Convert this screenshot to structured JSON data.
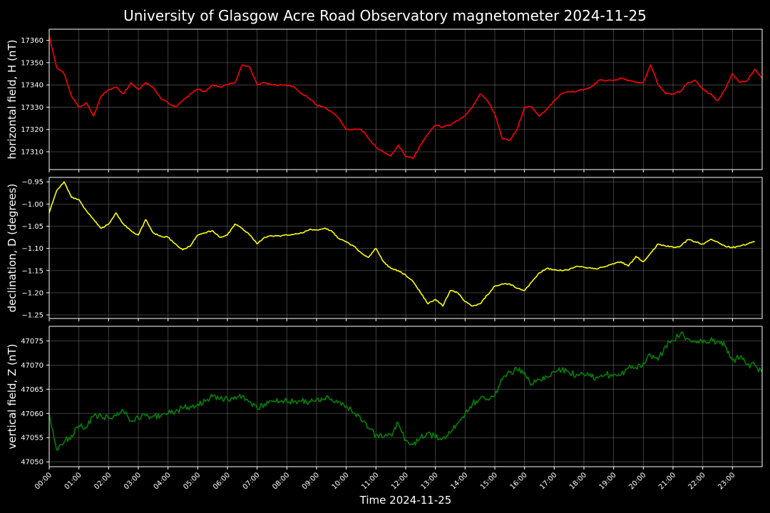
{
  "chart_data": {
    "type": "line",
    "title": "University of Glasgow Acre Road Observatory magnetometer 2024-11-25",
    "xlabel": "Time 2024-11-25",
    "x_ticks": [
      "00:00",
      "01:00",
      "02:00",
      "03:00",
      "04:00",
      "05:00",
      "06:00",
      "07:00",
      "08:00",
      "09:00",
      "10:00",
      "11:00",
      "12:00",
      "13:00",
      "14:00",
      "15:00",
      "16:00",
      "17:00",
      "18:00",
      "19:00",
      "20:00",
      "21:00",
      "22:00",
      "23:00"
    ],
    "xlim_hours": [
      0,
      24
    ],
    "grid": true,
    "background_color": "#000000",
    "panels": [
      {
        "ylabel": "horizontal field, H (nT)",
        "color": "#ff0000",
        "ylim": [
          17302,
          17365
        ],
        "y_ticks": [
          "17310",
          "17320",
          "17330",
          "17340",
          "17350",
          "17360"
        ],
        "y_tick_values": [
          17310,
          17320,
          17330,
          17340,
          17350,
          17360
        ],
        "points": [
          [
            0,
            17362
          ],
          [
            0.25,
            17348
          ],
          [
            0.5,
            17345
          ],
          [
            0.75,
            17335
          ],
          [
            1,
            17330
          ],
          [
            1.25,
            17332
          ],
          [
            1.5,
            17326
          ],
          [
            1.75,
            17335
          ],
          [
            2,
            17338
          ],
          [
            2.25,
            17339
          ],
          [
            2.5,
            17336
          ],
          [
            2.75,
            17341
          ],
          [
            3,
            17338
          ],
          [
            3.25,
            17341
          ],
          [
            3.5,
            17339
          ],
          [
            3.75,
            17334
          ],
          [
            4,
            17332
          ],
          [
            4.25,
            17330
          ],
          [
            4.5,
            17333
          ],
          [
            4.75,
            17336
          ],
          [
            5,
            17338
          ],
          [
            5.25,
            17337
          ],
          [
            5.5,
            17340
          ],
          [
            5.75,
            17339
          ],
          [
            6,
            17340
          ],
          [
            6.25,
            17341
          ],
          [
            6.5,
            17349
          ],
          [
            6.75,
            17348
          ],
          [
            7,
            17340
          ],
          [
            7.25,
            17341
          ],
          [
            7.5,
            17340
          ],
          [
            7.75,
            17340
          ],
          [
            8,
            17340
          ],
          [
            8.25,
            17339
          ],
          [
            8.5,
            17336
          ],
          [
            8.75,
            17334
          ],
          [
            9,
            17331
          ],
          [
            9.25,
            17330
          ],
          [
            9.5,
            17328
          ],
          [
            9.75,
            17325
          ],
          [
            10,
            17320
          ],
          [
            10.25,
            17320
          ],
          [
            10.5,
            17320
          ],
          [
            10.75,
            17316
          ],
          [
            11,
            17312
          ],
          [
            11.25,
            17310
          ],
          [
            11.5,
            17308
          ],
          [
            11.75,
            17313
          ],
          [
            12,
            17308
          ],
          [
            12.25,
            17307
          ],
          [
            12.5,
            17313
          ],
          [
            12.75,
            17318
          ],
          [
            13,
            17322
          ],
          [
            13.25,
            17321
          ],
          [
            13.5,
            17322
          ],
          [
            13.75,
            17324
          ],
          [
            14,
            17326
          ],
          [
            14.25,
            17330
          ],
          [
            14.5,
            17336
          ],
          [
            14.75,
            17333
          ],
          [
            15,
            17327
          ],
          [
            15.25,
            17316
          ],
          [
            15.5,
            17315
          ],
          [
            15.75,
            17320
          ],
          [
            16,
            17330
          ],
          [
            16.25,
            17330
          ],
          [
            16.5,
            17326
          ],
          [
            16.75,
            17329
          ],
          [
            17,
            17333
          ],
          [
            17.25,
            17336
          ],
          [
            17.5,
            17337
          ],
          [
            17.75,
            17337
          ],
          [
            18,
            17338
          ],
          [
            18.25,
            17339
          ],
          [
            18.5,
            17342
          ],
          [
            18.75,
            17342
          ],
          [
            19,
            17342
          ],
          [
            19.25,
            17343
          ],
          [
            19.5,
            17342
          ],
          [
            19.75,
            17341
          ],
          [
            20,
            17341
          ],
          [
            20.25,
            17349
          ],
          [
            20.5,
            17340
          ],
          [
            20.75,
            17336
          ],
          [
            21,
            17336
          ],
          [
            21.25,
            17337
          ],
          [
            21.5,
            17341
          ],
          [
            21.75,
            17342
          ],
          [
            22,
            17338
          ],
          [
            22.25,
            17336
          ],
          [
            22.5,
            17333
          ],
          [
            22.75,
            17338
          ],
          [
            23,
            17345
          ],
          [
            23.25,
            17341
          ],
          [
            23.5,
            17342
          ],
          [
            23.75,
            17347
          ],
          [
            24,
            17343
          ]
        ]
      },
      {
        "ylabel": "declination, D (degrees)",
        "color": "#ffff00",
        "ylim": [
          -1.258,
          -0.94
        ],
        "y_ticks": [
          "−0.95",
          "−1.00",
          "−1.05",
          "−1.10",
          "−1.15",
          "−1.20",
          "−1.25"
        ],
        "y_tick_values": [
          -0.95,
          -1.0,
          -1.05,
          -1.1,
          -1.15,
          -1.2,
          -1.25
        ],
        "points": [
          [
            0,
            -1.02
          ],
          [
            0.25,
            -0.97
          ],
          [
            0.5,
            -0.95
          ],
          [
            0.75,
            -0.985
          ],
          [
            1,
            -0.99
          ],
          [
            1.25,
            -1.015
          ],
          [
            1.5,
            -1.035
          ],
          [
            1.75,
            -1.055
          ],
          [
            2,
            -1.045
          ],
          [
            2.25,
            -1.02
          ],
          [
            2.5,
            -1.045
          ],
          [
            2.75,
            -1.06
          ],
          [
            3,
            -1.07
          ],
          [
            3.25,
            -1.035
          ],
          [
            3.5,
            -1.065
          ],
          [
            3.75,
            -1.072
          ],
          [
            4,
            -1.075
          ],
          [
            4.25,
            -1.09
          ],
          [
            4.5,
            -1.103
          ],
          [
            4.75,
            -1.095
          ],
          [
            5,
            -1.07
          ],
          [
            5.25,
            -1.065
          ],
          [
            5.5,
            -1.06
          ],
          [
            5.75,
            -1.075
          ],
          [
            6,
            -1.07
          ],
          [
            6.25,
            -1.045
          ],
          [
            6.5,
            -1.055
          ],
          [
            6.75,
            -1.07
          ],
          [
            7,
            -1.09
          ],
          [
            7.25,
            -1.075
          ],
          [
            7.5,
            -1.072
          ],
          [
            7.75,
            -1.072
          ],
          [
            8,
            -1.07
          ],
          [
            8.25,
            -1.068
          ],
          [
            8.5,
            -1.065
          ],
          [
            8.75,
            -1.058
          ],
          [
            9,
            -1.058
          ],
          [
            9.25,
            -1.055
          ],
          [
            9.5,
            -1.06
          ],
          [
            9.75,
            -1.078
          ],
          [
            10,
            -1.085
          ],
          [
            10.25,
            -1.095
          ],
          [
            10.5,
            -1.11
          ],
          [
            10.75,
            -1.12
          ],
          [
            11,
            -1.1
          ],
          [
            11.25,
            -1.13
          ],
          [
            11.5,
            -1.145
          ],
          [
            11.75,
            -1.15
          ],
          [
            12,
            -1.16
          ],
          [
            12.25,
            -1.175
          ],
          [
            12.5,
            -1.2
          ],
          [
            12.75,
            -1.225
          ],
          [
            13,
            -1.215
          ],
          [
            13.25,
            -1.23
          ],
          [
            13.5,
            -1.195
          ],
          [
            13.75,
            -1.2
          ],
          [
            14,
            -1.22
          ],
          [
            14.25,
            -1.23
          ],
          [
            14.5,
            -1.225
          ],
          [
            14.75,
            -1.205
          ],
          [
            15,
            -1.185
          ],
          [
            15.25,
            -1.18
          ],
          [
            15.5,
            -1.18
          ],
          [
            15.75,
            -1.19
          ],
          [
            16,
            -1.195
          ],
          [
            16.25,
            -1.175
          ],
          [
            16.5,
            -1.155
          ],
          [
            16.75,
            -1.145
          ],
          [
            17,
            -1.148
          ],
          [
            17.25,
            -1.15
          ],
          [
            17.5,
            -1.148
          ],
          [
            17.75,
            -1.14
          ],
          [
            18,
            -1.142
          ],
          [
            18.25,
            -1.145
          ],
          [
            18.5,
            -1.145
          ],
          [
            18.75,
            -1.14
          ],
          [
            19,
            -1.135
          ],
          [
            19.25,
            -1.13
          ],
          [
            19.5,
            -1.14
          ],
          [
            19.75,
            -1.118
          ],
          [
            20,
            -1.13
          ],
          [
            20.25,
            -1.11
          ],
          [
            20.5,
            -1.09
          ],
          [
            20.75,
            -1.095
          ],
          [
            21,
            -1.097
          ],
          [
            21.25,
            -1.095
          ],
          [
            21.5,
            -1.08
          ],
          [
            21.75,
            -1.085
          ],
          [
            22,
            -1.09
          ],
          [
            22.25,
            -1.08
          ],
          [
            22.5,
            -1.085
          ],
          [
            22.75,
            -1.095
          ],
          [
            23,
            -1.098
          ],
          [
            23.25,
            -1.095
          ],
          [
            23.5,
            -1.09
          ],
          [
            23.75,
            -1.085
          ]
        ]
      },
      {
        "ylabel": "vertical field, Z (nT)",
        "color": "#008000",
        "ylim": [
          47049,
          47078
        ],
        "y_ticks": [
          "47050",
          "47055",
          "47060",
          "47065",
          "47070",
          "47075"
        ],
        "y_tick_values": [
          47050,
          47055,
          47060,
          47065,
          47070,
          47075
        ],
        "points": [
          [
            0,
            47060
          ],
          [
            0.25,
            47052.5
          ],
          [
            0.5,
            47054
          ],
          [
            0.75,
            47055.5
          ],
          [
            1,
            47057.5
          ],
          [
            1.25,
            47057
          ],
          [
            1.5,
            47059.5
          ],
          [
            1.75,
            47059.5
          ],
          [
            2,
            47059
          ],
          [
            2.25,
            47059.5
          ],
          [
            2.5,
            47060.5
          ],
          [
            2.75,
            47058.5
          ],
          [
            3,
            47059
          ],
          [
            3.25,
            47059.5
          ],
          [
            3.5,
            47059.5
          ],
          [
            3.75,
            47059.5
          ],
          [
            4,
            47060
          ],
          [
            4.25,
            47060.5
          ],
          [
            4.5,
            47061
          ],
          [
            4.75,
            47061.5
          ],
          [
            5,
            47062
          ],
          [
            5.25,
            47062.5
          ],
          [
            5.5,
            47063.5
          ],
          [
            5.75,
            47063
          ],
          [
            6,
            47063
          ],
          [
            6.25,
            47063.5
          ],
          [
            6.5,
            47063.5
          ],
          [
            6.75,
            47062.5
          ],
          [
            7,
            47061
          ],
          [
            7.25,
            47062
          ],
          [
            7.5,
            47062.5
          ],
          [
            7.75,
            47062.5
          ],
          [
            8,
            47062.5
          ],
          [
            8.25,
            47062.5
          ],
          [
            8.5,
            47062.5
          ],
          [
            8.75,
            47062.5
          ],
          [
            9,
            47063
          ],
          [
            9.25,
            47063
          ],
          [
            9.5,
            47063
          ],
          [
            9.75,
            47062.5
          ],
          [
            10,
            47061.5
          ],
          [
            10.25,
            47060
          ],
          [
            10.5,
            47058.5
          ],
          [
            10.75,
            47057
          ],
          [
            11,
            47055.5
          ],
          [
            11.25,
            47055
          ],
          [
            11.5,
            47055.5
          ],
          [
            11.75,
            47058
          ],
          [
            12,
            47054.5
          ],
          [
            12.25,
            47053.5
          ],
          [
            12.5,
            47055
          ],
          [
            12.75,
            47056
          ],
          [
            13,
            47055
          ],
          [
            13.25,
            47055
          ],
          [
            13.5,
            47056
          ],
          [
            13.75,
            47058
          ],
          [
            14,
            47060
          ],
          [
            14.25,
            47062
          ],
          [
            14.5,
            47063
          ],
          [
            14.75,
            47063
          ],
          [
            15,
            47063.5
          ],
          [
            15.25,
            47067
          ],
          [
            15.5,
            47068.5
          ],
          [
            15.75,
            47069
          ],
          [
            16,
            47068.5
          ],
          [
            16.25,
            47066
          ],
          [
            16.5,
            47067
          ],
          [
            16.75,
            47067.5
          ],
          [
            17,
            47068.5
          ],
          [
            17.25,
            47069
          ],
          [
            17.5,
            47068.5
          ],
          [
            17.75,
            47068
          ],
          [
            18,
            47068
          ],
          [
            18.25,
            47067.5
          ],
          [
            18.5,
            47067.5
          ],
          [
            18.75,
            47068
          ],
          [
            19,
            47068
          ],
          [
            19.25,
            47068
          ],
          [
            19.5,
            47069.5
          ],
          [
            19.75,
            47069.5
          ],
          [
            20,
            47070.5
          ],
          [
            20.25,
            47072
          ],
          [
            20.5,
            47071
          ],
          [
            20.75,
            47074
          ],
          [
            21,
            47075
          ],
          [
            21.25,
            47076.5
          ],
          [
            21.5,
            47075.5
          ],
          [
            21.75,
            47075
          ],
          [
            22,
            47074.5
          ],
          [
            22.25,
            47075
          ],
          [
            22.5,
            47075
          ],
          [
            22.75,
            47074
          ],
          [
            23,
            47071
          ],
          [
            23.25,
            47071.5
          ],
          [
            23.5,
            47070
          ],
          [
            23.75,
            47070
          ],
          [
            24,
            47068.5
          ]
        ]
      }
    ]
  }
}
